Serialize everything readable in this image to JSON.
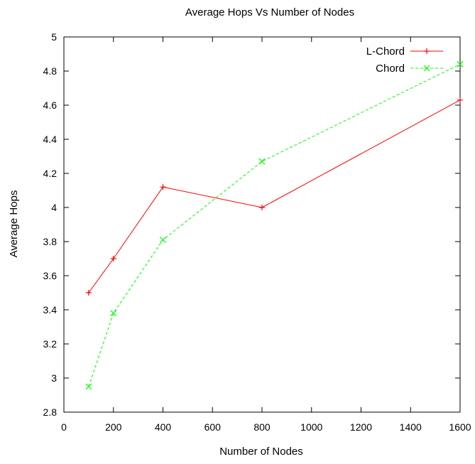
{
  "chart_data": {
    "type": "line",
    "title": "Average Hops Vs Number of Nodes",
    "xlabel": "Number of Nodes",
    "ylabel": "Average Hops",
    "xlim": [
      0,
      1600
    ],
    "ylim": [
      2.8,
      5
    ],
    "xticks": [
      "0",
      "200",
      "400",
      "600",
      "800",
      "1000",
      "1200",
      "1400",
      "1600"
    ],
    "yticks": [
      "2.8",
      "3",
      "3.2",
      "3.4",
      "3.6",
      "3.8",
      "4",
      "4.2",
      "4.4",
      "4.6",
      "4.8",
      "5"
    ],
    "grid": false,
    "legend_position": "top-right",
    "series": [
      {
        "name": "L-Chord",
        "color": "#ff0000",
        "line_style": "solid",
        "marker": "plus",
        "x": [
          100,
          200,
          400,
          800,
          1600
        ],
        "values": [
          3.5,
          3.7,
          4.12,
          4.0,
          4.63
        ]
      },
      {
        "name": "Chord",
        "color": "#00ff00",
        "line_style": "dashed",
        "marker": "cross",
        "x": [
          100,
          200,
          400,
          800,
          1600
        ],
        "values": [
          2.95,
          3.38,
          3.81,
          4.27,
          4.84
        ]
      }
    ]
  }
}
